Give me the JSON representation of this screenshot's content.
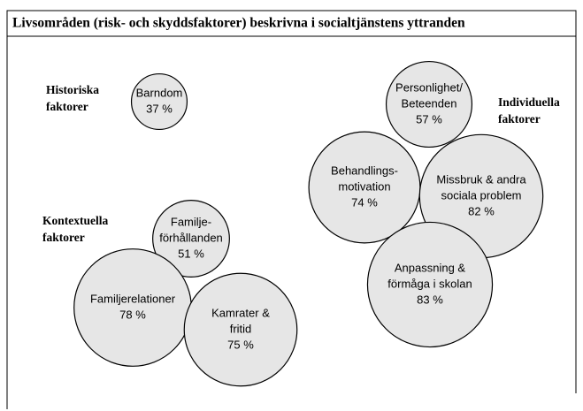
{
  "title": "Livsområden (risk- och skyddsfaktorer) beskrivna i socialtjänstens yttranden",
  "groups": [
    {
      "lines": [
        "Historiska",
        "faktorer"
      ]
    },
    {
      "lines": [
        "Individuella",
        "faktorer"
      ]
    },
    {
      "lines": [
        "Kontextuella",
        "faktorer"
      ]
    }
  ],
  "nodes": [
    {
      "lines": [
        "Barndom"
      ],
      "value": 37,
      "value_label": "37 %"
    },
    {
      "lines": [
        "Personlighet/",
        "Beteenden"
      ],
      "value": 57,
      "value_label": "57 %"
    },
    {
      "lines": [
        "Behandlings-",
        "motivation"
      ],
      "value": 74,
      "value_label": "74 %"
    },
    {
      "lines": [
        "Missbruk & andra",
        "sociala problem"
      ],
      "value": 82,
      "value_label": "82 %"
    },
    {
      "lines": [
        "Anpassning &",
        "förmåga i skolan"
      ],
      "value": 83,
      "value_label": "83 %"
    },
    {
      "lines": [
        "Familje-",
        "förhållanden"
      ],
      "value": 51,
      "value_label": "51 %"
    },
    {
      "lines": [
        "Familjerelationer"
      ],
      "value": 78,
      "value_label": "78 %"
    },
    {
      "lines": [
        "Kamrater &",
        "fritid"
      ],
      "value": 75,
      "value_label": "75 %"
    }
  ]
}
